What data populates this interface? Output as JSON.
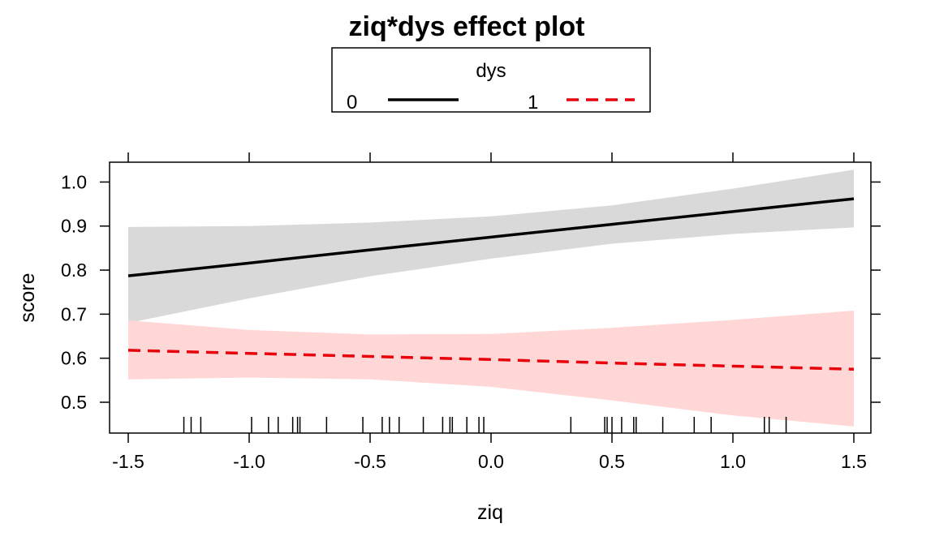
{
  "chart_data": {
    "type": "line",
    "title": "ziq*dys effect plot",
    "xlabel": "ziq",
    "ylabel": "score",
    "xlim": [
      -1.5,
      1.5
    ],
    "ylim": [
      0.43,
      1.045
    ],
    "x_ticks": [
      -1.5,
      -1.0,
      -0.5,
      0.0,
      0.5,
      1.0,
      1.5
    ],
    "x_tick_labels": [
      "-1.5",
      "-1.0",
      "-0.5",
      "0.0",
      "0.5",
      "1.0",
      "1.5"
    ],
    "y_ticks": [
      0.5,
      0.6,
      0.7,
      0.8,
      0.9,
      1.0
    ],
    "y_tick_labels": [
      "0.5",
      "0.6",
      "0.7",
      "0.8",
      "0.9",
      "1.0"
    ],
    "grid": false,
    "legend": {
      "title": "dys",
      "placement": "top-center",
      "entries": [
        {
          "label": "0",
          "color": "#000000",
          "dash": "solid"
        },
        {
          "label": "1",
          "color": "#e8000b",
          "dash": "dashed"
        }
      ]
    },
    "x": [
      -1.5,
      -1.0,
      -0.5,
      0.0,
      0.5,
      1.0,
      1.5
    ],
    "series": [
      {
        "name": "0",
        "color": "#000000",
        "band_color": "#d9d9d9",
        "dash": "solid",
        "values": [
          0.787,
          0.816,
          0.846,
          0.875,
          0.904,
          0.933,
          0.962
        ],
        "lower": [
          0.68,
          0.736,
          0.786,
          0.826,
          0.86,
          0.882,
          0.897
        ],
        "upper": [
          0.898,
          0.9,
          0.908,
          0.922,
          0.947,
          0.985,
          1.028
        ]
      },
      {
        "name": "1",
        "color": "#e8000b",
        "band_color": "#ffd7d7",
        "dash": "dashed",
        "values": [
          0.618,
          0.611,
          0.604,
          0.597,
          0.589,
          0.582,
          0.575
        ],
        "lower": [
          0.552,
          0.556,
          0.552,
          0.535,
          0.504,
          0.47,
          0.445
        ],
        "upper": [
          0.686,
          0.664,
          0.654,
          0.655,
          0.669,
          0.687,
          0.708
        ]
      }
    ],
    "rug_x": [
      -1.27,
      -1.24,
      -1.2,
      -0.99,
      -0.92,
      -0.88,
      -0.82,
      -0.8,
      -0.79,
      -0.68,
      -0.53,
      -0.45,
      -0.42,
      -0.38,
      -0.28,
      -0.2,
      -0.17,
      -0.16,
      -0.1,
      -0.05,
      -0.03,
      0.33,
      0.47,
      0.48,
      0.5,
      0.54,
      0.59,
      0.6,
      0.71,
      0.84,
      0.91,
      1.13,
      1.15,
      1.22
    ]
  }
}
